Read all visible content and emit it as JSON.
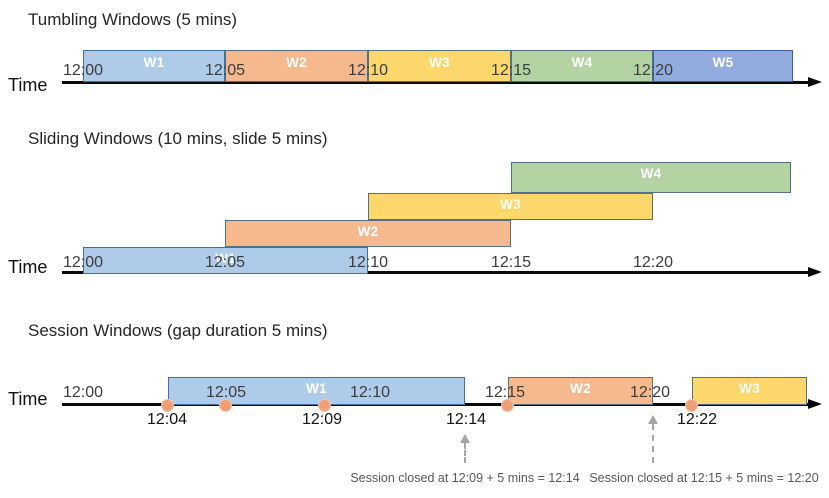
{
  "colors": {
    "axis": "#0a0a0a",
    "event_dot_fill": "#EE9F77",
    "event_dot_ring": "#F5C5A3",
    "dashed_arrow": "#A6A6A6",
    "annotation_text": "#595959"
  },
  "sections": [
    {
      "id": "tumbling",
      "title": "Tumbling Windows (5 mins)",
      "time_label": "Time",
      "ticks": [
        "12:00",
        "12:05",
        "12:10",
        "12:15",
        "12:20"
      ],
      "windows": [
        {
          "label": "W1",
          "start": "12:00",
          "end": "12:05",
          "fill": "#AECBEA",
          "border": "#41719C"
        },
        {
          "label": "W2",
          "start": "12:05",
          "end": "12:10",
          "fill": "#F5B98D",
          "border": "#527086"
        },
        {
          "label": "W3",
          "start": "12:10",
          "end": "12:15",
          "fill": "#FBD76C",
          "border": "#527086"
        },
        {
          "label": "W4",
          "start": "12:15",
          "end": "12:20",
          "fill": "#B3D3A3",
          "border": "#527086"
        },
        {
          "label": "W5",
          "start": "12:20",
          "end": "12:25",
          "fill": "#92ACDF",
          "border": "#3A5DA8"
        }
      ]
    },
    {
      "id": "sliding",
      "title": "Sliding Windows (10 mins, slide 5 mins)",
      "time_label": "Time",
      "ticks": [
        "12:00",
        "12:05",
        "12:10",
        "12:15",
        "12:20"
      ],
      "windows": [
        {
          "label": "W1",
          "start": "12:00",
          "end": "12:10",
          "fill": "#AECBEA",
          "border": "#41719C"
        },
        {
          "label": "W2",
          "start": "12:05",
          "end": "12:15",
          "fill": "#F5B98D",
          "border": "#527086"
        },
        {
          "label": "W3",
          "start": "12:10",
          "end": "12:20",
          "fill": "#FBD76C",
          "border": "#527086"
        },
        {
          "label": "W4",
          "start": "12:15",
          "end": "12:25",
          "fill": "#B3D3A3",
          "border": "#527086"
        }
      ]
    },
    {
      "id": "session",
      "title": "Session Windows (gap duration 5 mins)",
      "time_label": "Time",
      "ticks": [
        "12:00",
        "12:05",
        "12:10",
        "12:15",
        "12:20"
      ],
      "windows": [
        {
          "label": "W1",
          "start": "12:04",
          "end": "12:14",
          "fill": "#AECBEA",
          "border": "#41719C"
        },
        {
          "label": "W2",
          "start": "12:15",
          "end": "12:20",
          "fill": "#F5B98D",
          "border": "#527086"
        },
        {
          "label": "W3",
          "start": "12:22",
          "end": "",
          "fill": "#FBD76C",
          "border": "#527086"
        }
      ],
      "event_labels": [
        "12:04",
        "12:09",
        "12:14",
        "12:22"
      ],
      "annotations": [
        "Session closed at 12:09 + 5 mins = 12:14",
        "Session closed at 12:15 + 5 mins = 12:20"
      ]
    }
  ]
}
